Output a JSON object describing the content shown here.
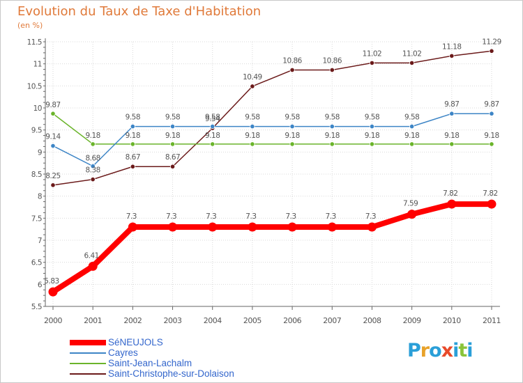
{
  "chart_data": {
    "type": "line",
    "title": "Evolution du Taux de Taxe d'Habitation",
    "ylabel": "(en %)",
    "xlabel": "",
    "ylim": [
      5.5,
      11.5
    ],
    "yticks": [
      "5.5",
      "6",
      "6.5",
      "7",
      "7.5",
      "8",
      "8.5",
      "9",
      "9.5",
      "10",
      "10.5",
      "11",
      "11.5"
    ],
    "categories": [
      "2000",
      "2001",
      "2002",
      "2003",
      "2004",
      "2005",
      "2006",
      "2007",
      "2008",
      "2009",
      "2010",
      "2011"
    ],
    "grid": true,
    "legend_position": "bottom-left",
    "series": [
      {
        "name": "SéNEUJOLS",
        "color": "#ff0000",
        "values": [
          5.83,
          6.41,
          7.3,
          7.3,
          7.3,
          7.3,
          7.3,
          7.3,
          7.3,
          7.59,
          7.82,
          7.82
        ],
        "labels": [
          "5.83",
          "6.41",
          "7.3",
          "7.3",
          "7.3",
          "7.3",
          "7.3",
          "7.3",
          "7.3",
          "7.59",
          "7.82",
          "7.82"
        ]
      },
      {
        "name": "Cayres",
        "color": "#3d85c6",
        "values": [
          9.14,
          8.68,
          9.58,
          9.58,
          9.58,
          9.58,
          9.58,
          9.58,
          9.58,
          9.58,
          9.87,
          9.87
        ],
        "labels": [
          "9.14",
          "8.68",
          "9.58",
          "9.58",
          "9.58",
          "9.58",
          "9.58",
          "9.58",
          "9.58",
          "9.58",
          "9.87",
          "9.87"
        ]
      },
      {
        "name": "Saint-Jean-Lachalm",
        "color": "#6ab42a",
        "values": [
          9.87,
          9.18,
          9.18,
          9.18,
          9.18,
          9.18,
          9.18,
          9.18,
          9.18,
          9.18,
          9.18,
          9.18
        ],
        "labels": [
          "9.87",
          "9.18",
          "9.18",
          "9.18",
          "9.18",
          "9.18",
          "9.18",
          "9.18",
          "9.18",
          "9.18",
          "9.18",
          "9.18"
        ]
      },
      {
        "name": "Saint-Christophe-sur-Dolaison",
        "color": "#6b1a1a",
        "values": [
          8.25,
          8.38,
          8.67,
          8.67,
          9.54,
          10.49,
          10.86,
          10.86,
          11.02,
          11.02,
          11.18,
          11.29
        ],
        "labels": [
          "8.25",
          "8.38",
          "8.67",
          "8.67",
          "9.54",
          "10.49",
          "10.86",
          "10.86",
          "11.02",
          "11.02",
          "11.18",
          "11.29"
        ]
      }
    ]
  },
  "logo": {
    "letters": [
      "P",
      "r",
      "o",
      "x",
      "i",
      "t",
      "i"
    ],
    "colors": [
      "#2a9fd8",
      "#e8a22a",
      "#2a9fd8",
      "#e84a2a",
      "#2a9fd8",
      "#8ac43a",
      "#2a9fd8"
    ]
  }
}
